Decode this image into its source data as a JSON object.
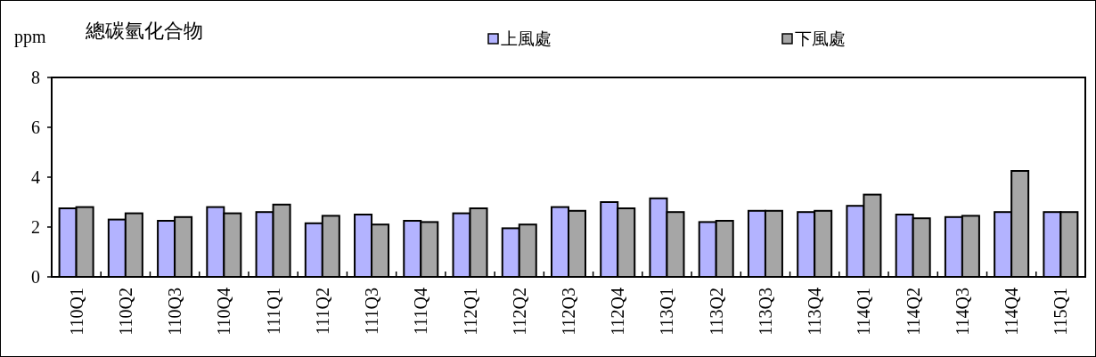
{
  "chart_data": {
    "type": "bar",
    "title": "總碳氫化合物",
    "ylabel": "ppm",
    "categories": [
      "110Q1",
      "110Q2",
      "110Q3",
      "110Q4",
      "111Q1",
      "111Q2",
      "111Q3",
      "111Q4",
      "112Q1",
      "112Q2",
      "112Q3",
      "112Q4",
      "113Q1",
      "113Q2",
      "113Q3",
      "113Q4",
      "114Q1",
      "114Q2",
      "114Q3",
      "114Q4",
      "115Q1"
    ],
    "series": [
      {
        "name": "上風處",
        "color": "#b3b3ff",
        "values": [
          2.75,
          2.3,
          2.25,
          2.8,
          2.6,
          2.15,
          2.5,
          2.25,
          2.55,
          1.95,
          2.8,
          3.0,
          3.15,
          2.2,
          2.65,
          2.6,
          2.85,
          2.5,
          2.4,
          2.6,
          2.6
        ]
      },
      {
        "name": "下風處",
        "color": "#a6a6a6",
        "values": [
          2.8,
          2.55,
          2.4,
          2.55,
          2.9,
          2.45,
          2.1,
          2.2,
          2.75,
          2.1,
          2.65,
          2.75,
          2.6,
          2.25,
          2.65,
          2.65,
          3.3,
          2.35,
          2.45,
          4.25,
          2.6
        ]
      }
    ],
    "ylim": [
      0,
      8
    ],
    "yticks": [
      0,
      2,
      4,
      6,
      8
    ],
    "grid": false,
    "legend": "top"
  }
}
